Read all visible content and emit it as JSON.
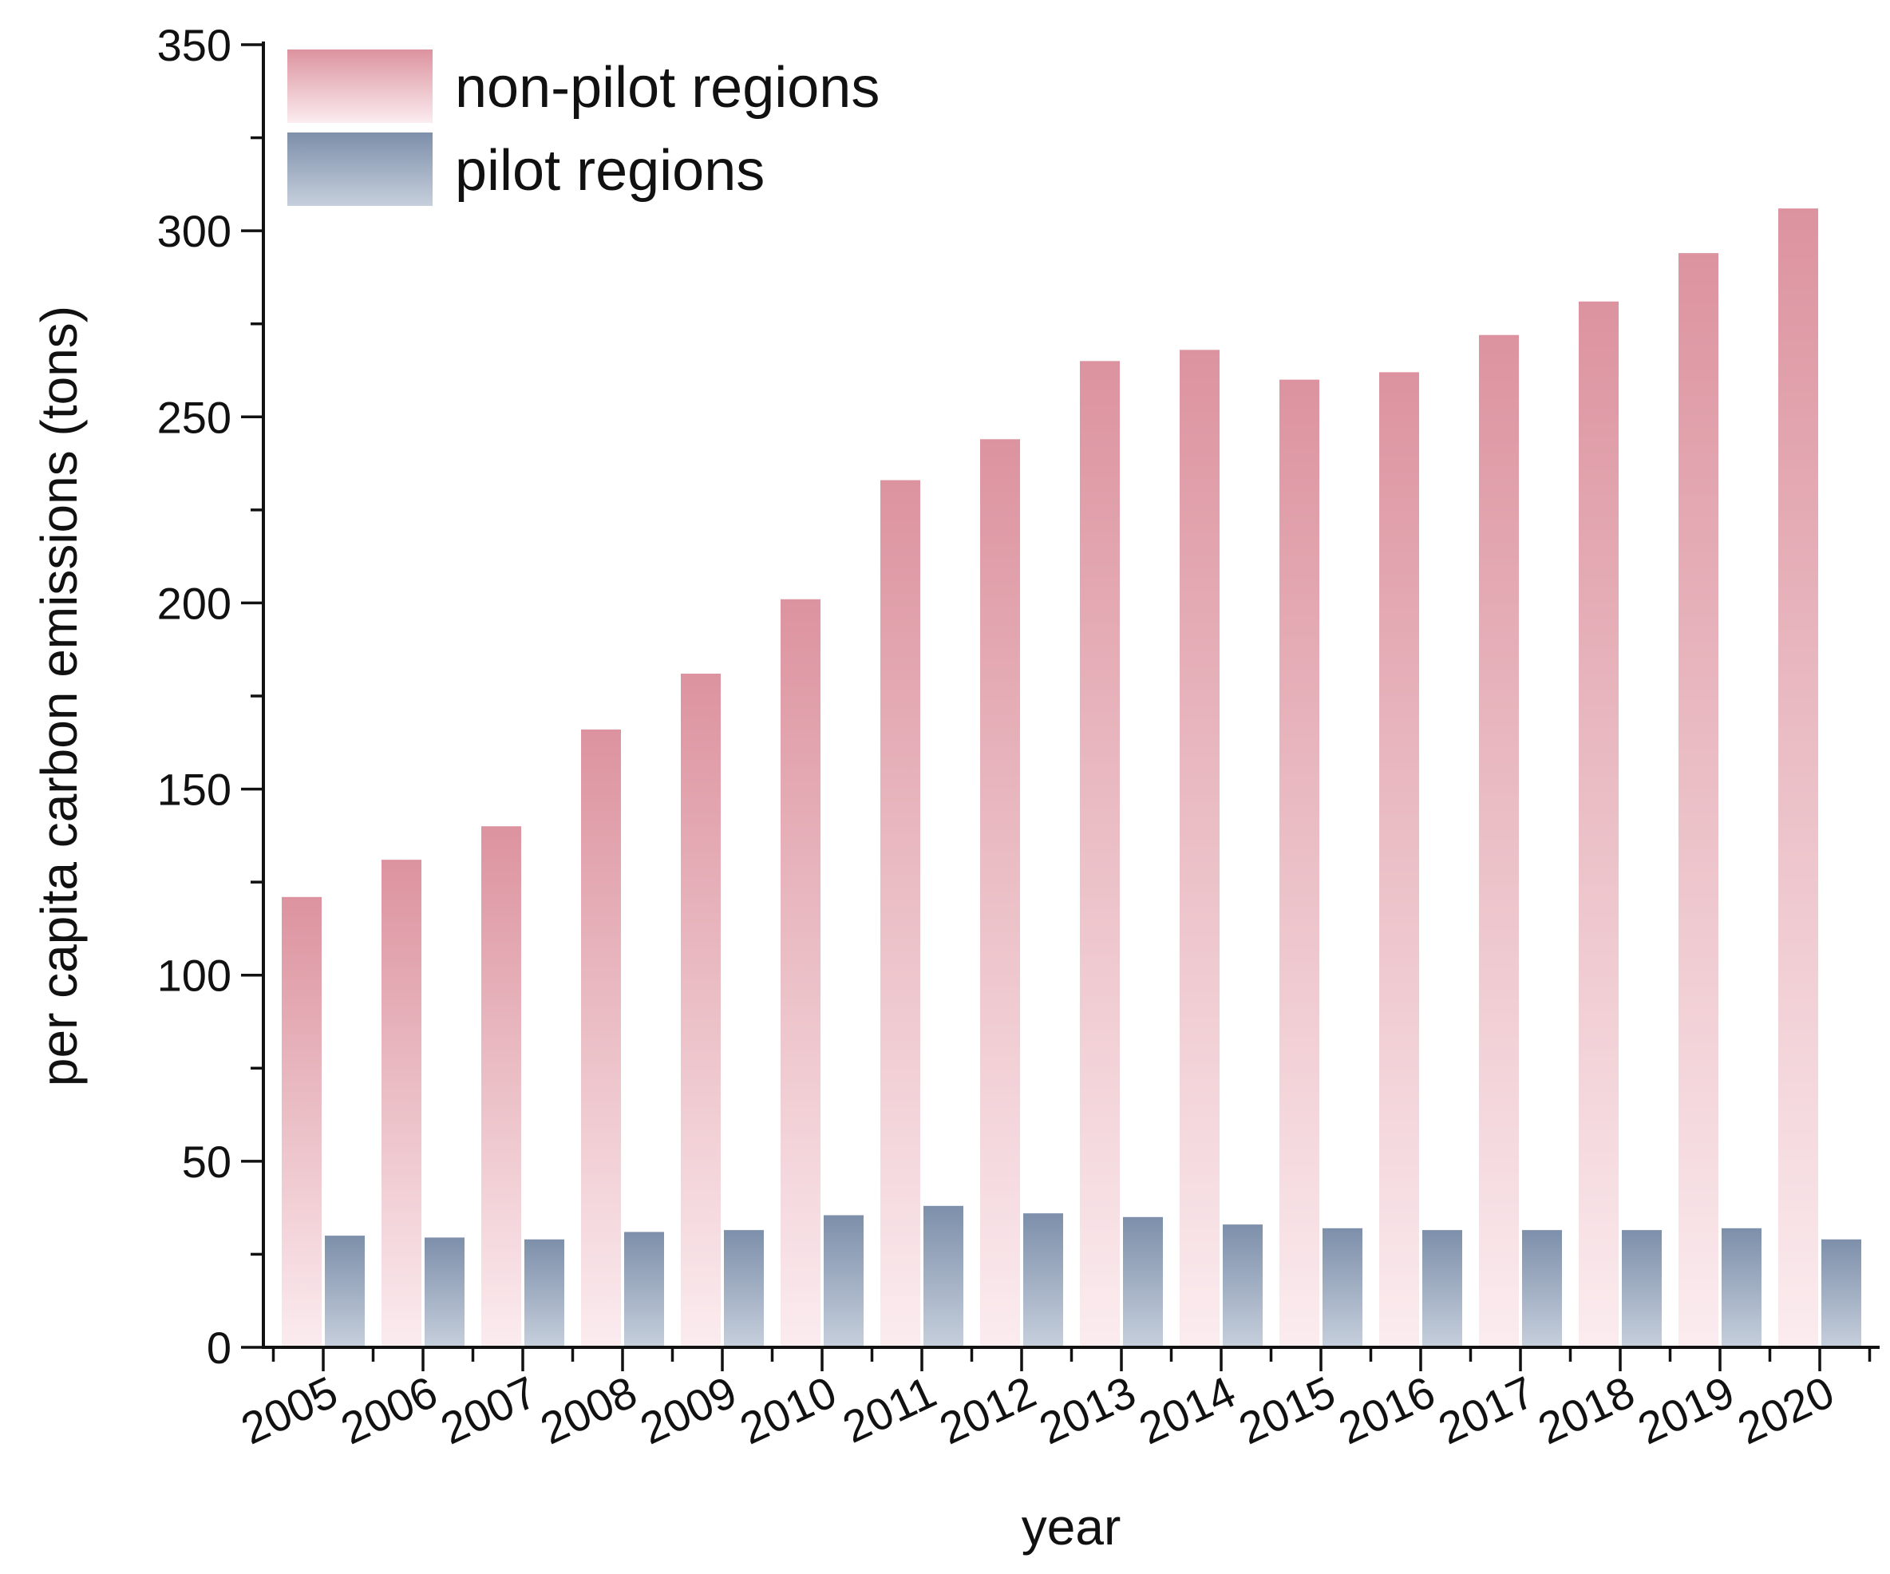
{
  "colors": {
    "non_pilot_top": "#dc939f",
    "non_pilot_bottom": "#fbecef",
    "pilot_top": "#7d8faa",
    "pilot_bottom": "#c6cfdc",
    "axis": "#111111"
  },
  "chart_data": {
    "type": "bar",
    "xlabel": "year",
    "ylabel": "per capita carbon emissions (tons)",
    "ylim": [
      0,
      350
    ],
    "yticks": [
      0,
      50,
      100,
      150,
      200,
      250,
      300,
      350
    ],
    "y_minor_step": 25,
    "grid": false,
    "legend_position": "top-left",
    "categories": [
      "2005",
      "2006",
      "2007",
      "2008",
      "2009",
      "2010",
      "2011",
      "2012",
      "2013",
      "2014",
      "2015",
      "2016",
      "2017",
      "2018",
      "2019",
      "2020"
    ],
    "series": [
      {
        "name": "non-pilot regions",
        "color_key": "non_pilot",
        "values": [
          121,
          131,
          140,
          166,
          181,
          201,
          233,
          244,
          265,
          268,
          260,
          262,
          272,
          281,
          294,
          306
        ]
      },
      {
        "name": "pilot regions",
        "color_key": "pilot",
        "values": [
          30,
          29.5,
          29,
          31,
          31.5,
          35.5,
          38,
          36,
          35,
          33,
          32,
          31.5,
          31.5,
          31.5,
          32,
          29
        ]
      }
    ]
  }
}
